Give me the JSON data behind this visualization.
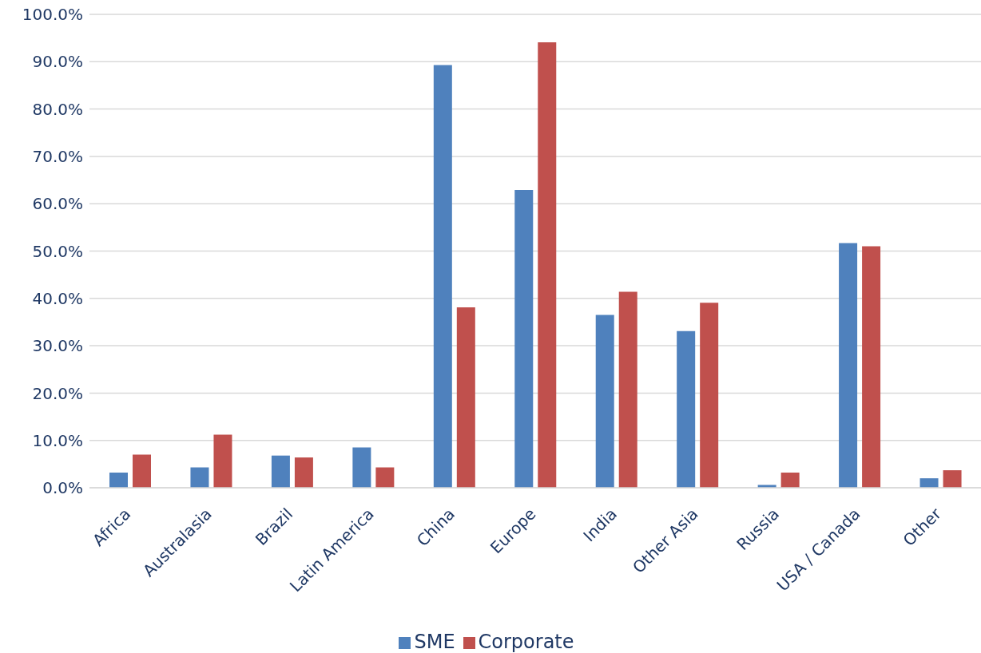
{
  "chart_data": {
    "type": "bar",
    "categories": [
      "Africa",
      "Australasia",
      "Brazil",
      "Latin America",
      "China",
      "Europe",
      "India",
      "Other Asia",
      "Russia",
      "USA / Canada",
      "Other"
    ],
    "series": [
      {
        "name": "SME",
        "color": "#4f81bd",
        "values": [
          3.2,
          4.3,
          6.8,
          8.5,
          89.3,
          62.9,
          36.5,
          33.1,
          0.6,
          51.7,
          2.0
        ]
      },
      {
        "name": "Corporate",
        "color": "#c0504d",
        "values": [
          7.0,
          11.2,
          6.4,
          4.3,
          38.1,
          94.1,
          41.4,
          39.1,
          3.2,
          51.0,
          3.7
        ]
      }
    ],
    "ylim": [
      0,
      100
    ],
    "yticks": [
      {
        "value": 0,
        "label": "0.0%"
      },
      {
        "value": 10,
        "label": "10.0%"
      },
      {
        "value": 20,
        "label": "20.0%"
      },
      {
        "value": 30,
        "label": "30.0%"
      },
      {
        "value": 40,
        "label": "40.0%"
      },
      {
        "value": 50,
        "label": "50.0%"
      },
      {
        "value": 60,
        "label": "60.0%"
      },
      {
        "value": 70,
        "label": "70.0%"
      },
      {
        "value": 80,
        "label": "80.0%"
      },
      {
        "value": 90,
        "label": "90.0%"
      },
      {
        "value": 100,
        "label": "100.0%"
      }
    ],
    "grid": "y",
    "legend": "bottom"
  }
}
